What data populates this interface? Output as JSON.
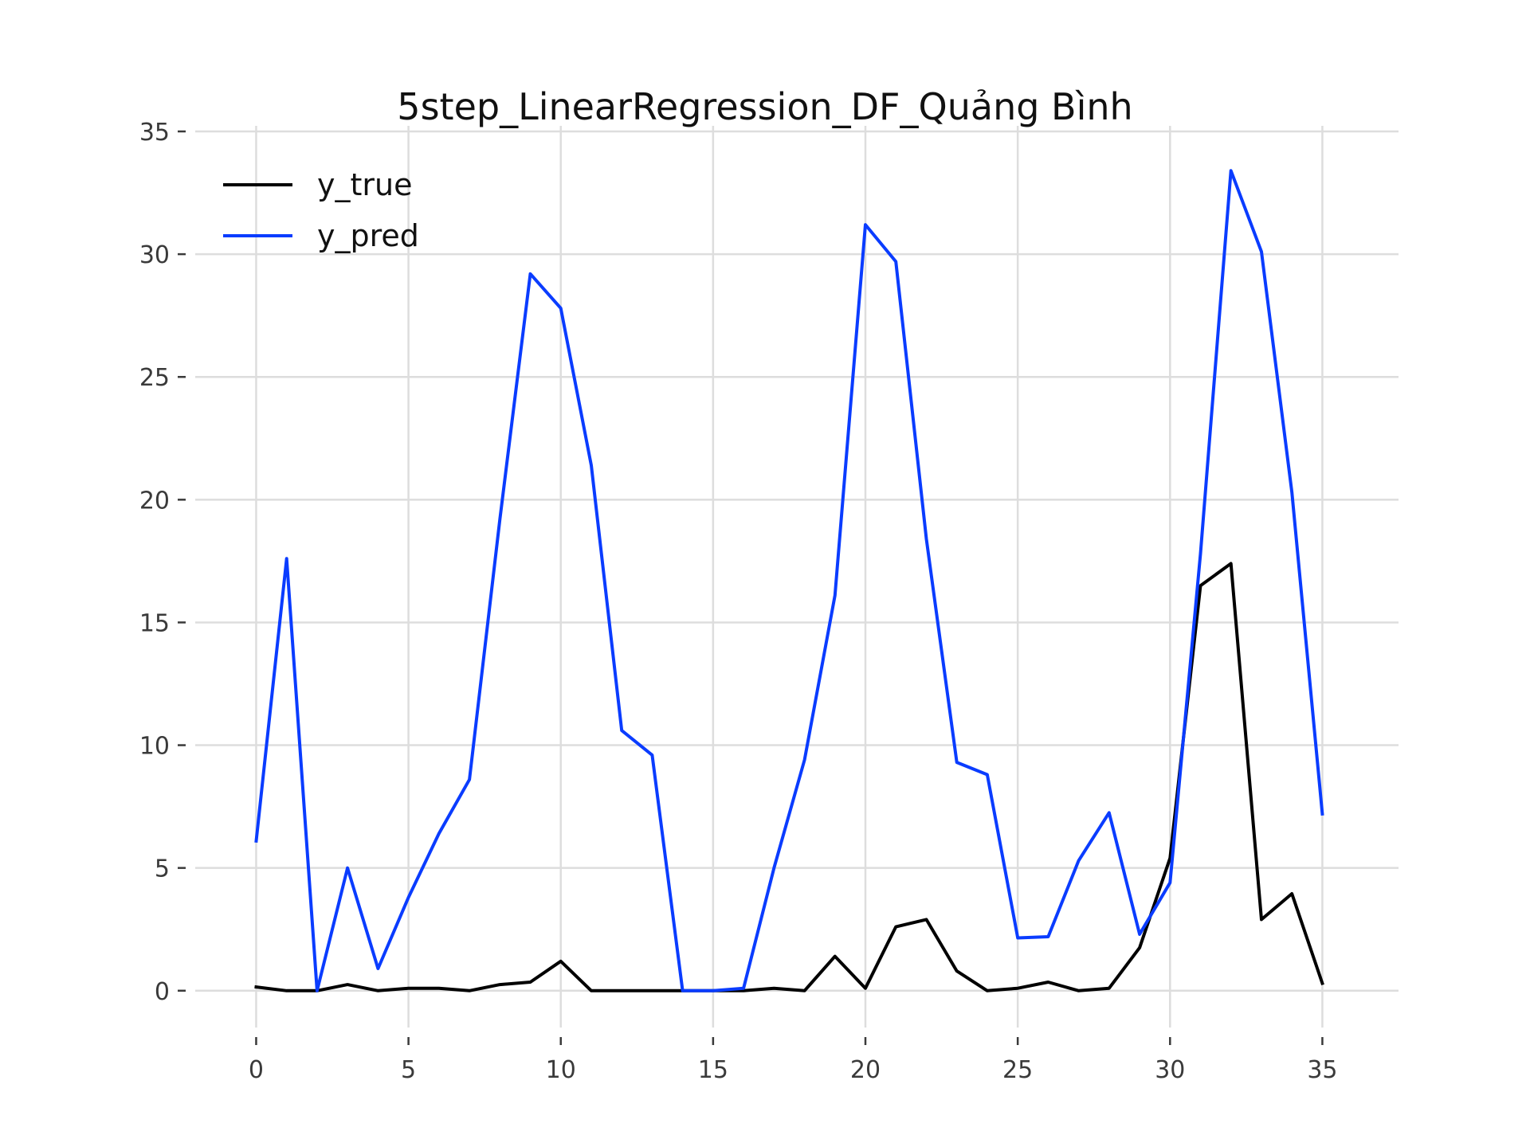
{
  "chart_data": {
    "type": "line",
    "title": "5step_LinearRegression_DF_Quảng Bình",
    "xlabel": "",
    "ylabel": "",
    "xlim": [
      -2,
      37.5
    ],
    "ylim": [
      -1.5,
      35
    ],
    "xticks": [
      0,
      5,
      10,
      15,
      20,
      25,
      30,
      35
    ],
    "yticks": [
      0,
      5,
      10,
      15,
      20,
      25,
      30,
      35
    ],
    "grid": true,
    "legend_position": "top-left",
    "x": [
      0,
      1,
      2,
      3,
      4,
      5,
      6,
      7,
      8,
      9,
      10,
      11,
      12,
      13,
      14,
      15,
      16,
      17,
      18,
      19,
      20,
      21,
      22,
      23,
      24,
      25,
      26,
      27,
      28,
      29,
      30,
      31,
      32,
      33,
      34,
      35
    ],
    "series": [
      {
        "name": "y_true",
        "color": "#000000",
        "values": [
          0.15,
          0,
          0,
          0.25,
          0,
          0.1,
          0.1,
          0,
          0.25,
          0.35,
          1.2,
          0,
          0,
          0,
          0,
          0,
          0,
          0.1,
          0,
          1.4,
          0.1,
          2.6,
          2.9,
          0.8,
          0,
          0.1,
          0.35,
          0,
          0.1,
          1.75,
          5.4,
          16.5,
          17.4,
          2.9,
          3.95,
          0.3
        ]
      },
      {
        "name": "y_pred",
        "color": "#0a3cff",
        "values": [
          6.1,
          17.6,
          0,
          5,
          0.9,
          3.8,
          6.4,
          8.6,
          19.2,
          29.2,
          27.8,
          21.4,
          10.6,
          9.6,
          0,
          0,
          0.1,
          5,
          9.4,
          16.1,
          31.2,
          29.7,
          18.4,
          9.3,
          8.8,
          2.15,
          2.2,
          5.3,
          7.25,
          2.3,
          4.4,
          17.8,
          33.4,
          30.1,
          20.3,
          7.2
        ]
      }
    ]
  }
}
